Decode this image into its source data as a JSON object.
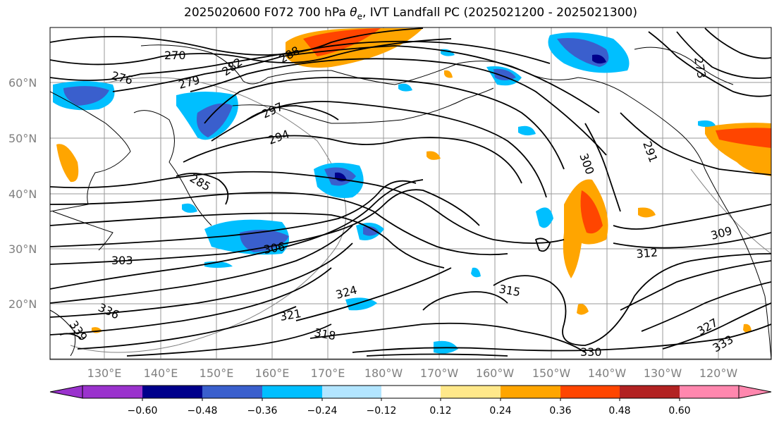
{
  "title": {
    "prefix": "2025020600 F072 700 hPa ",
    "theta": "θ",
    "theta_sub": "e",
    "suffix": ", IVT Landfall PC (2025021200 - 2025021300)"
  },
  "map": {
    "latitude_labels": [
      "60°N",
      "50°N",
      "40°N",
      "30°N",
      "20°N"
    ],
    "longitude_labels": [
      "130°E",
      "140°E",
      "150°E",
      "160°E",
      "170°E",
      "180°W",
      "170°W",
      "160°W",
      "150°W",
      "140°W",
      "130°W",
      "120°W"
    ],
    "contour_labels": [
      "270",
      "276",
      "279",
      "282",
      "288",
      "291",
      "294",
      "297",
      "285",
      "300",
      "303",
      "306",
      "309",
      "312",
      "315",
      "318",
      "321",
      "324",
      "327",
      "330",
      "333",
      "336",
      "339",
      "273"
    ]
  },
  "colorbar": {
    "ticks": [
      "−0.60",
      "−0.48",
      "−0.36",
      "−0.24",
      "−0.12",
      "0.12",
      "0.24",
      "0.36",
      "0.48",
      "0.60"
    ],
    "colors": [
      "#9a32cd",
      "#00008b",
      "#3a5fcd",
      "#00bfff",
      "#b2e5ff",
      "#ffffff",
      "#ffe88a",
      "#ffa500",
      "#ff4500",
      "#b22222",
      "#ff87ae"
    ]
  }
}
